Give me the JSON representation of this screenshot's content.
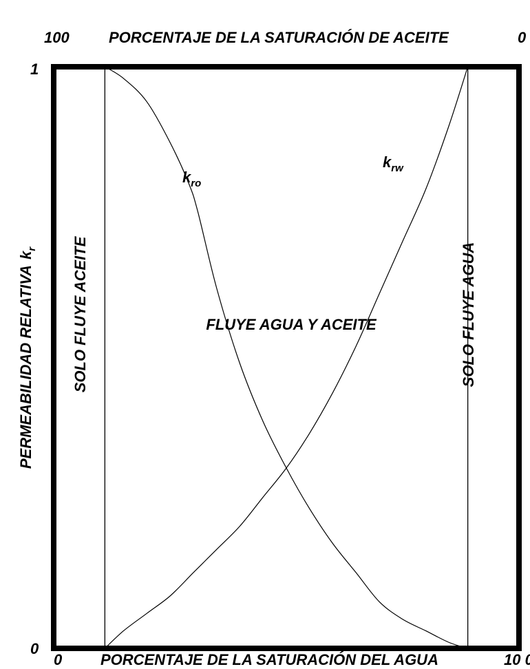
{
  "chart_data": {
    "type": "line",
    "top_axis": {
      "label": "PORCENTAJE DE LA SATURACIÓN DE ACEITE",
      "left_tick": "100",
      "right_tick": "0"
    },
    "bottom_axis": {
      "label": "PORCENTAJE DE LA SATURACIÓN DEL AGUA",
      "left_tick": "0",
      "right_tick": "10 0"
    },
    "y_axis": {
      "label": "PERMEABILIDAD RELATIVA",
      "symbol": "k",
      "symbol_sub": "r",
      "top_tick": "1",
      "bottom_tick": "0"
    },
    "xlim": [
      0,
      100
    ],
    "ylim": [
      0,
      1
    ],
    "boundaries": [
      11,
      89
    ],
    "regions": {
      "left": "SOLO FLUYE ACEITE",
      "middle": "FLUYE AGUA Y ACEITE",
      "right": "SOLO FLUYE AGUA"
    },
    "series": [
      {
        "name": "kro",
        "label_main": "k",
        "label_sub": "ro",
        "x": [
          11,
          15,
          20,
          25,
          29,
          31,
          35,
          40,
          45,
          50,
          55,
          60,
          65,
          70,
          75,
          80,
          85,
          89
        ],
        "y": [
          1.0,
          0.98,
          0.94,
          0.87,
          0.8,
          0.75,
          0.62,
          0.49,
          0.39,
          0.31,
          0.24,
          0.18,
          0.13,
          0.08,
          0.05,
          0.03,
          0.01,
          0.0
        ]
      },
      {
        "name": "krw",
        "label_main": "k",
        "label_sub": "rw",
        "x": [
          11,
          15,
          20,
          25,
          30,
          35,
          40,
          45,
          50,
          55,
          60,
          65,
          70,
          75,
          80,
          85,
          89
        ],
        "y": [
          0.0,
          0.03,
          0.06,
          0.09,
          0.13,
          0.17,
          0.21,
          0.26,
          0.31,
          0.37,
          0.44,
          0.52,
          0.61,
          0.7,
          0.79,
          0.9,
          1.0
        ]
      }
    ]
  }
}
